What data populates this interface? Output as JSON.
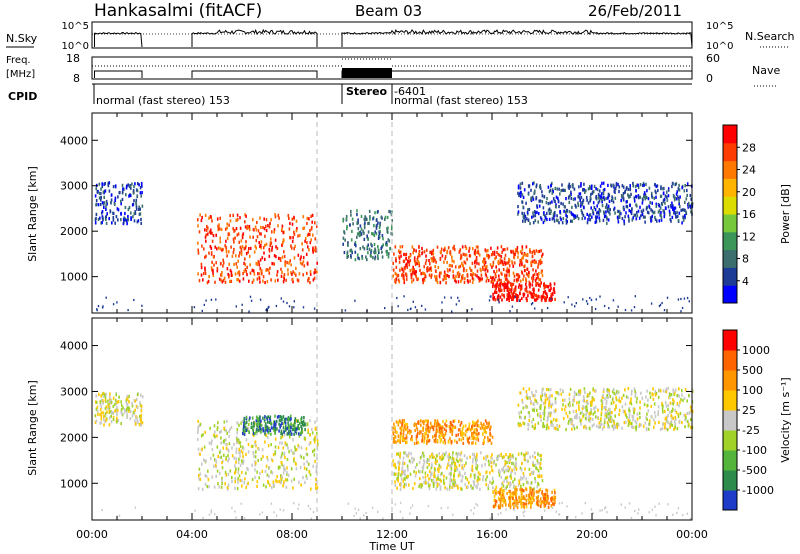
{
  "header": {
    "station": "Hankasalmi (fitACF)",
    "beam": "Beam 03",
    "date": "26/Feb/2011"
  },
  "rows": {
    "nsky_label": "N.Sky",
    "nsky_ticks": [
      "10^5",
      "10^0"
    ],
    "nsearch_label": "N.Search",
    "nsearch_ticks": [
      "10^5",
      "10^0"
    ],
    "freq_label_1": "Freq.",
    "freq_label_2": "[MHz]",
    "freq_ticks": [
      "18",
      "8"
    ],
    "nave_label": "Nave",
    "nave_ticks": [
      "60",
      "0"
    ],
    "cpid_label": "CPID",
    "cpid_segments": [
      {
        "start": 0,
        "end": 10,
        "text": "normal (fast stereo) 153"
      },
      {
        "start": 10,
        "end": 12,
        "text": "Stereo"
      },
      {
        "start": 12,
        "end": 24,
        "text": "-6401"
      },
      {
        "start": 12,
        "end": 24,
        "text": "normal (fast stereo) 153"
      }
    ]
  },
  "chart_data": {
    "type": "heatmap",
    "xlabel": "Time UT",
    "ylabel": "Slant Range [km]",
    "x_ticks": [
      "00:00",
      "04:00",
      "08:00",
      "12:00",
      "16:00",
      "20:00",
      "00:00"
    ],
    "x_range_hours": [
      0,
      24
    ],
    "y_range_km": [
      200,
      4600
    ],
    "y_ticks": [
      1000,
      2000,
      3000,
      4000
    ],
    "data_gaps_hours": [
      [
        2,
        4
      ],
      [
        9,
        10
      ]
    ],
    "dashed_markers_hours": [
      9,
      12
    ],
    "panels": [
      {
        "name": "power",
        "colorbar_label": "Power [dB]",
        "colorbar_ticks": [
          "28",
          "24",
          "20",
          "16",
          "12",
          "8",
          "4"
        ],
        "colors": [
          "#0000ff",
          "#1e3c96",
          "#3c6e6e",
          "#3c965a",
          "#78c83c",
          "#dcdc00",
          "#ffb400",
          "#ff7800",
          "#ff3c00",
          "#ff0000"
        ],
        "bands": [
          {
            "t_start": 0.1,
            "t_end": 2.0,
            "range_low": 2200,
            "range_high": 3100,
            "level": 1
          },
          {
            "t_start": 4.2,
            "t_end": 9.0,
            "range_low": 900,
            "range_high": 2400,
            "level": 8
          },
          {
            "t_start": 10.0,
            "t_end": 12.0,
            "range_low": 1400,
            "range_high": 2500,
            "level": 2
          },
          {
            "t_start": 12.0,
            "t_end": 18.0,
            "range_low": 900,
            "range_high": 1700,
            "level": 8
          },
          {
            "t_start": 16.0,
            "t_end": 18.5,
            "range_low": 500,
            "range_high": 900,
            "level": 9
          },
          {
            "t_start": 17.0,
            "t_end": 24.0,
            "range_low": 2200,
            "range_high": 3100,
            "level": 1
          }
        ]
      },
      {
        "name": "velocity",
        "colorbar_label": "Velocity [m s⁻¹]",
        "colorbar_ticks": [
          "1000",
          "500",
          "100",
          "25",
          "-25",
          "-100",
          "-500",
          "-1000"
        ],
        "colors": [
          "#1e3cc8",
          "#2d8c4b",
          "#55b43c",
          "#a0d228",
          "#c8c8c8",
          "#ffc800",
          "#ff9600",
          "#ff6400",
          "#ff0000"
        ],
        "bands": [
          {
            "t_start": 0.1,
            "t_end": 2.0,
            "range_low": 2300,
            "range_high": 3000,
            "level": 4
          },
          {
            "t_start": 4.2,
            "t_end": 9.0,
            "range_low": 900,
            "range_high": 2400,
            "level": 4
          },
          {
            "t_start": 6.0,
            "t_end": 8.5,
            "range_low": 2100,
            "range_high": 2500,
            "level": 1
          },
          {
            "t_start": 12.0,
            "t_end": 18.0,
            "range_low": 900,
            "range_high": 1700,
            "level": 4
          },
          {
            "t_start": 12.0,
            "t_end": 16.0,
            "range_low": 1900,
            "range_high": 2400,
            "level": 6
          },
          {
            "t_start": 16.0,
            "t_end": 18.5,
            "range_low": 500,
            "range_high": 900,
            "level": 6
          },
          {
            "t_start": 17.0,
            "t_end": 24.0,
            "range_low": 2200,
            "range_high": 3100,
            "level": 4
          }
        ]
      }
    ]
  }
}
